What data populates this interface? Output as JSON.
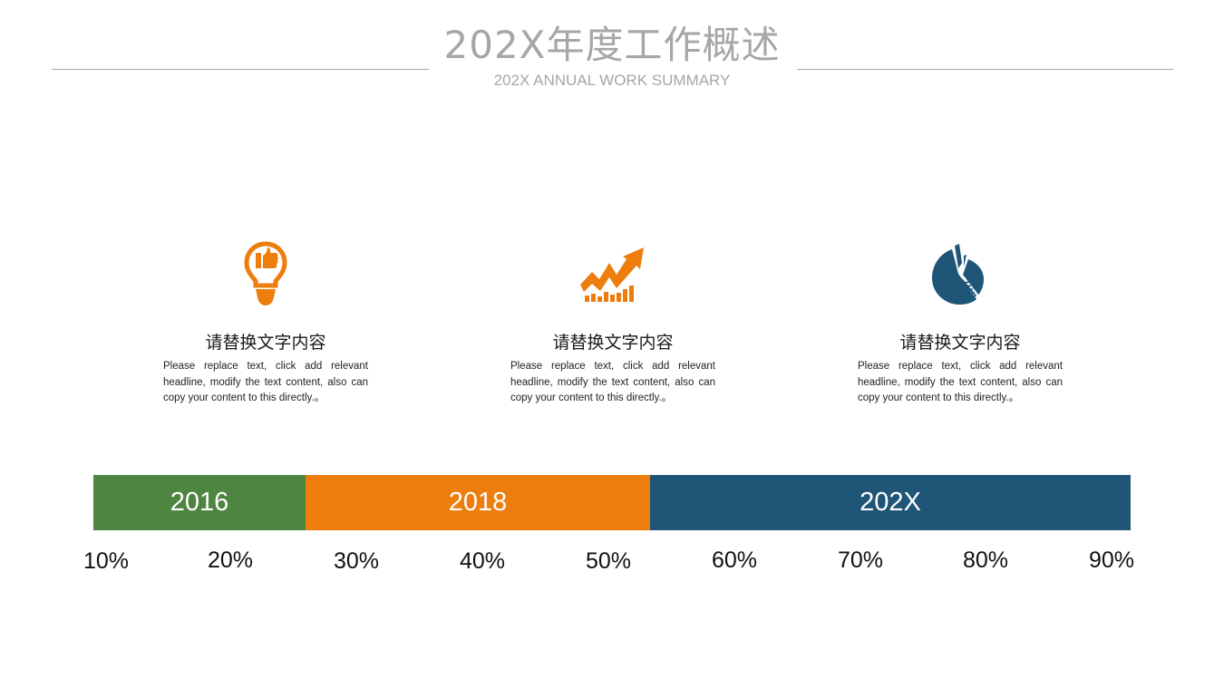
{
  "header": {
    "title": "202X年度工作概述",
    "subtitle": "202X ANNUAL WORK SUMMARY"
  },
  "features": [
    {
      "icon": "lightbulb-thumbs-up-icon",
      "title": "请替换文字内容",
      "description": "Please replace text, click add relevant headline, modify the text content, also can copy your content to this directly.。",
      "color": "#ED7D0D"
    },
    {
      "icon": "growth-chart-icon",
      "title": "请替换文字内容",
      "description": "Please replace text, click add relevant headline, modify the text content, also can copy your content to this directly.。",
      "color": "#ED7D0D"
    },
    {
      "icon": "pie-chart-icon",
      "title": "请替换文字内容",
      "description": "Please replace text, click add relevant headline, modify the text content, also can copy your content to this directly.。",
      "color": "#1F5678"
    }
  ],
  "timeline": {
    "segments": [
      {
        "label": "2016",
        "color": "#4E8541",
        "start_percent": 10,
        "end_percent": 27
      },
      {
        "label": "2018",
        "color": "#ED7D0D",
        "start_percent": 27,
        "end_percent": 54.4
      },
      {
        "label": "202X",
        "color": "#1F5678",
        "start_percent": 54.4,
        "end_percent": 92.5
      }
    ],
    "ticks": [
      "10%",
      "20%",
      "30%",
      "40%",
      "50%",
      "60%",
      "70%",
      "80%",
      "90%"
    ]
  }
}
